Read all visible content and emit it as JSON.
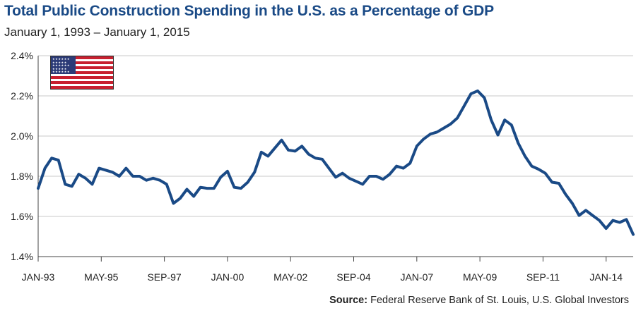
{
  "chart_data": {
    "type": "line",
    "title": "Total Public Construction Spending in the U.S. as a Percentage of GDP",
    "subtitle": "January 1, 1993 – January 1, 2015",
    "xlabel": "",
    "ylabel": "",
    "ylim": [
      1.4,
      2.4
    ],
    "yticks": [
      "1.4%",
      "1.6%",
      "1.8%",
      "2.0%",
      "2.2%",
      "2.4%"
    ],
    "xticks": [
      "JAN-93",
      "MAY-95",
      "SEP-97",
      "JAN-00",
      "MAY-02",
      "SEP-04",
      "JAN-07",
      "MAY-09",
      "SEP-11",
      "JAN-14"
    ],
    "grid": "horizontal",
    "series": [
      {
        "color": "#1a4a86",
        "x": [
          "1993-01",
          "1993-04",
          "1993-07",
          "1993-10",
          "1994-01",
          "1994-04",
          "1994-07",
          "1994-10",
          "1995-01",
          "1995-04",
          "1995-07",
          "1995-10",
          "1996-01",
          "1996-04",
          "1996-07",
          "1996-10",
          "1997-01",
          "1997-04",
          "1997-07",
          "1997-10",
          "1998-01",
          "1998-04",
          "1998-07",
          "1998-10",
          "1999-01",
          "1999-04",
          "1999-07",
          "1999-10",
          "2000-01",
          "2000-04",
          "2000-07",
          "2000-10",
          "2001-01",
          "2001-04",
          "2001-07",
          "2001-10",
          "2002-01",
          "2002-04",
          "2002-07",
          "2002-10",
          "2003-01",
          "2003-04",
          "2003-07",
          "2003-10",
          "2004-01",
          "2004-04",
          "2004-07",
          "2004-10",
          "2005-01",
          "2005-04",
          "2005-07",
          "2005-10",
          "2006-01",
          "2006-04",
          "2006-07",
          "2006-10",
          "2007-01",
          "2007-04",
          "2007-07",
          "2007-10",
          "2008-01",
          "2008-04",
          "2008-07",
          "2008-10",
          "2009-01",
          "2009-04",
          "2009-07",
          "2009-10",
          "2010-01",
          "2010-04",
          "2010-07",
          "2010-10",
          "2011-01",
          "2011-04",
          "2011-07",
          "2011-10",
          "2012-01",
          "2012-04",
          "2012-07",
          "2012-10",
          "2013-01",
          "2013-04",
          "2013-07",
          "2013-10",
          "2014-01",
          "2014-04",
          "2014-07",
          "2014-10",
          "2015-01"
        ],
        "values": [
          1.74,
          1.84,
          1.89,
          1.88,
          1.76,
          1.75,
          1.81,
          1.79,
          1.76,
          1.84,
          1.83,
          1.82,
          1.8,
          1.84,
          1.8,
          1.8,
          1.78,
          1.79,
          1.78,
          1.76,
          1.665,
          1.69,
          1.735,
          1.7,
          1.745,
          1.74,
          1.74,
          1.795,
          1.825,
          1.745,
          1.74,
          1.77,
          1.82,
          1.92,
          1.9,
          1.94,
          1.98,
          1.93,
          1.925,
          1.95,
          1.91,
          1.89,
          1.885,
          1.84,
          1.795,
          1.815,
          1.79,
          1.775,
          1.76,
          1.8,
          1.8,
          1.785,
          1.81,
          1.85,
          1.84,
          1.865,
          1.95,
          1.985,
          2.01,
          2.02,
          2.04,
          2.06,
          2.09,
          2.15,
          2.21,
          2.225,
          2.19,
          2.08,
          2.005,
          2.08,
          2.055,
          1.965,
          1.9,
          1.85,
          1.835,
          1.815,
          1.77,
          1.765,
          1.71,
          1.665,
          1.605,
          1.63,
          1.605,
          1.58,
          1.54,
          1.58,
          1.57,
          1.585,
          1.51
        ]
      }
    ],
    "source_label": "Source:",
    "source_text": "Federal Reserve Bank of St. Louis, U.S. Global Investors"
  },
  "flag_icon": "us-flag-icon",
  "colors": {
    "line": "#1a4a86",
    "title": "#1a4a86",
    "grid": "#c8c8c8",
    "axis": "#444444"
  }
}
